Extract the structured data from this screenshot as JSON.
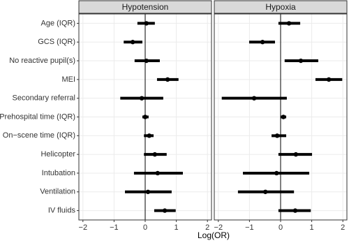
{
  "chart_data": {
    "type": "forest",
    "categories": [
      "Age (IQR)",
      "GCS (IQR)",
      "No reactive pupil(s)",
      "MEI",
      "Secondary referral",
      "Prehospital time (IQR)",
      "On−scene time (IQR)",
      "Helicopter",
      "Intubation",
      "Ventilation",
      "IV fluids"
    ],
    "xlabel": "Log(OR)",
    "xlim": [
      -2.13,
      2.13
    ],
    "xticks": [
      {
        "value": -2,
        "label": "−2"
      },
      {
        "value": -1,
        "label": "−1"
      },
      0,
      1,
      2
    ],
    "refline": 0,
    "grid": true,
    "color": "#000000",
    "panels": [
      {
        "title": "Hypotension",
        "values": [
          0.04,
          -0.4,
          0.04,
          0.72,
          -0.11,
          0.0,
          0.13,
          0.31,
          0.4,
          0.09,
          0.63
        ],
        "lower": [
          -0.25,
          -0.69,
          -0.34,
          0.38,
          -0.8,
          -0.09,
          -0.04,
          -0.04,
          -0.36,
          -0.65,
          0.29
        ],
        "upper": [
          0.31,
          -0.09,
          0.47,
          1.07,
          0.58,
          0.11,
          0.27,
          0.69,
          1.21,
          0.85,
          0.98
        ]
      },
      {
        "title": "Hypoxia",
        "values": [
          0.27,
          -0.58,
          0.65,
          1.55,
          -0.85,
          0.09,
          -0.11,
          0.49,
          -0.13,
          -0.49,
          0.47
        ],
        "lower": [
          -0.07,
          -1.01,
          0.13,
          1.12,
          -1.89,
          0.0,
          -0.29,
          -0.07,
          -1.21,
          -1.37,
          -0.07
        ],
        "upper": [
          0.63,
          -0.18,
          1.21,
          1.98,
          0.2,
          0.18,
          0.18,
          1.01,
          0.92,
          0.43,
          0.97
        ]
      }
    ]
  }
}
